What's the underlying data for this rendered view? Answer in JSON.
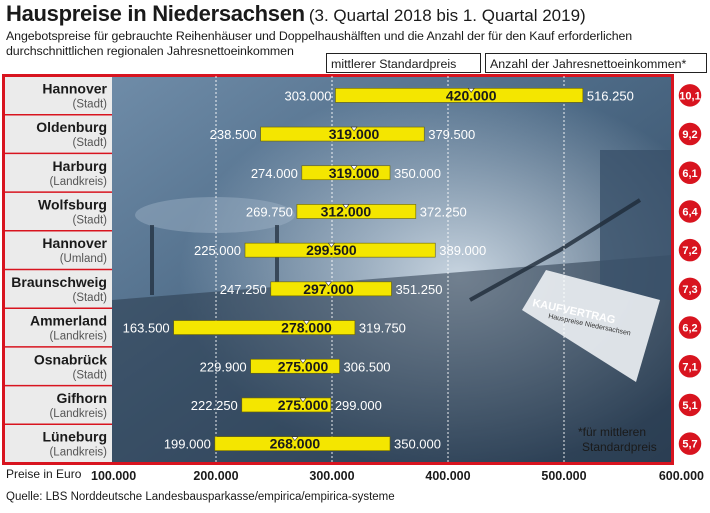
{
  "title": "Hauspreise in Niedersachsen",
  "subtitle": "(3. Quartal 2018 bis 1. Quartal 2019)",
  "description_line1": "Angebotspreise für gebrauchte Reihenhäuser und Doppelhaushälften und die Anzahl der für den Kauf erforderlichen",
  "description_line2": "durchschnittlichen regionalen Jahresnettoeinkommen",
  "legend": {
    "median": "mittlerer Standardpreis",
    "income": "Anzahl der Jahresnettoeinkommen*"
  },
  "axis_prefix": "Preise in Euro",
  "footnote_line1": "*für mittleren",
  "footnote_line2": "Standardpreis",
  "source": "Quelle: LBS Norddeutsche Landesbausparkasse/empirica/empirica-systeme",
  "background_labels": {
    "contract_title": "KAUFVERTRAG",
    "contract_doc": "Hauspreise Niedersachsen"
  },
  "colors": {
    "bar": "#f4e600",
    "badge": "#d8141f",
    "frame": "#d8141f",
    "label_column": "#ebebeb",
    "photo": "#4e6b86"
  },
  "chart_data": {
    "type": "range-bar",
    "xlim": [
      100000,
      600000
    ],
    "x_ticks": [
      100000,
      200000,
      300000,
      400000,
      500000,
      600000
    ],
    "x_tick_labels": [
      "100.000",
      "200.000",
      "300.000",
      "400.000",
      "500.000",
      "600.000"
    ],
    "rows": [
      {
        "region": "Hannover",
        "type": "(Stadt)",
        "low": 303000,
        "low_label": "303.000",
        "median": 420000,
        "median_label": "420.000",
        "high": 516250,
        "high_label": "516.250",
        "income_multiple": "10,1"
      },
      {
        "region": "Oldenburg",
        "type": "(Stadt)",
        "low": 238500,
        "low_label": "238.500",
        "median": 319000,
        "median_label": "319.000",
        "high": 379500,
        "high_label": "379.500",
        "income_multiple": "9,2"
      },
      {
        "region": "Harburg",
        "type": "(Landkreis)",
        "low": 274000,
        "low_label": "274.000",
        "median": 319000,
        "median_label": "319.000",
        "high": 350000,
        "high_label": "350.000",
        "income_multiple": "6,1"
      },
      {
        "region": "Wolfsburg",
        "type": "(Stadt)",
        "low": 269750,
        "low_label": "269.750",
        "median": 312000,
        "median_label": "312.000",
        "high": 372250,
        "high_label": "372.250",
        "income_multiple": "6,4"
      },
      {
        "region": "Hannover",
        "type": "(Umland)",
        "low": 225000,
        "low_label": "225.000",
        "median": 299500,
        "median_label": "299.500",
        "high": 389000,
        "high_label": "389.000",
        "income_multiple": "7,2"
      },
      {
        "region": "Braunschweig",
        "type": "(Stadt)",
        "low": 247250,
        "low_label": "247.250",
        "median": 297000,
        "median_label": "297.000",
        "high": 351250,
        "high_label": "351.250",
        "income_multiple": "7,3"
      },
      {
        "region": "Ammerland",
        "type": "(Landkreis)",
        "low": 163500,
        "low_label": "163.500",
        "median": 278000,
        "median_label": "278.000",
        "high": 319750,
        "high_label": "319.750",
        "income_multiple": "6,2"
      },
      {
        "region": "Osnabrück",
        "type": "(Stadt)",
        "low": 229900,
        "low_label": "229.900",
        "median": 275000,
        "median_label": "275.000",
        "high": 306500,
        "high_label": "306.500",
        "income_multiple": "7,1"
      },
      {
        "region": "Gifhorn",
        "type": "(Landkreis)",
        "low": 222250,
        "low_label": "222.250",
        "median": 275000,
        "median_label": "275.000",
        "high": 299000,
        "high_label": "299.000",
        "income_multiple": "5,1"
      },
      {
        "region": "Lüneburg",
        "type": "(Landkreis)",
        "low": 199000,
        "low_label": "199.000",
        "median": 268000,
        "median_label": "268.000",
        "high": 350000,
        "high_label": "350.000",
        "income_multiple": "5,7"
      }
    ]
  }
}
